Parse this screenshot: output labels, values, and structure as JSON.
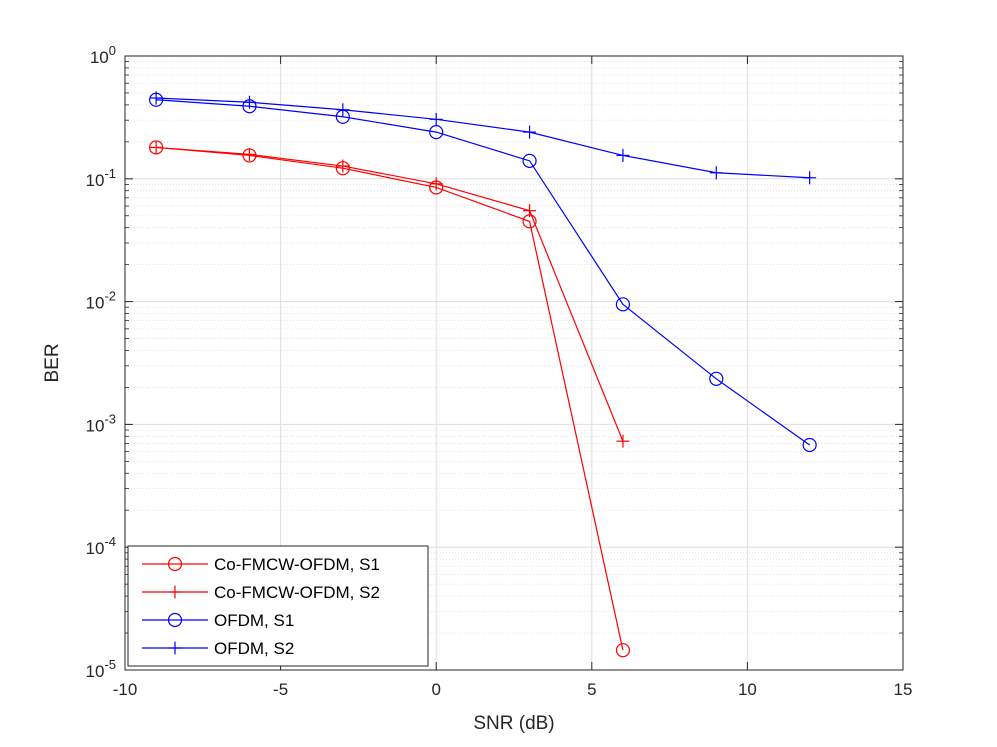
{
  "chart_data": {
    "type": "line",
    "title": "",
    "xlabel": "SNR (dB)",
    "ylabel": "BER",
    "xlim": [
      -10,
      15
    ],
    "ylim_log10": [
      -5,
      0
    ],
    "yscale": "log",
    "grid": true,
    "x_ticks": [
      -10,
      -5,
      0,
      5,
      10,
      15
    ],
    "x_tick_labels": [
      "-10",
      "-5",
      "0",
      "5",
      "10",
      "15"
    ],
    "y_ticks": [
      {
        "exp": 0,
        "base": "10",
        "power": "0"
      },
      {
        "exp": -1,
        "base": "10",
        "power": "-1"
      },
      {
        "exp": -2,
        "base": "10",
        "power": "-2"
      },
      {
        "exp": -3,
        "base": "10",
        "power": "-3"
      },
      {
        "exp": -4,
        "base": "10",
        "power": "-4"
      },
      {
        "exp": -5,
        "base": "10",
        "power": "-5"
      }
    ],
    "legend_position": "bottom-left",
    "series": [
      {
        "name": "Co-FMCW-OFDM, S1",
        "color": "#ff0000",
        "marker": "circle",
        "x": [
          -9,
          -6,
          -3,
          0,
          3,
          6
        ],
        "y": [
          0.18,
          0.155,
          0.122,
          0.085,
          0.045,
          1.45e-05
        ]
      },
      {
        "name": "Co-FMCW-OFDM, S2",
        "color": "#ff0000",
        "marker": "plus",
        "x": [
          -9,
          -6,
          -3,
          0,
          3,
          6
        ],
        "y": [
          0.18,
          0.158,
          0.127,
          0.091,
          0.055,
          0.00073
        ]
      },
      {
        "name": "OFDM, S1",
        "color": "#0000ff",
        "marker": "circle",
        "x": [
          -9,
          -6,
          -3,
          0,
          3,
          6,
          9,
          12
        ],
        "y": [
          0.44,
          0.39,
          0.32,
          0.24,
          0.14,
          0.0095,
          0.00235,
          0.00068
        ]
      },
      {
        "name": "OFDM, S2",
        "color": "#0000ff",
        "marker": "plus",
        "x": [
          -9,
          -6,
          -3,
          0,
          3,
          6,
          9,
          12
        ],
        "y": [
          0.455,
          0.42,
          0.365,
          0.305,
          0.24,
          0.155,
          0.112,
          0.102
        ]
      }
    ]
  }
}
